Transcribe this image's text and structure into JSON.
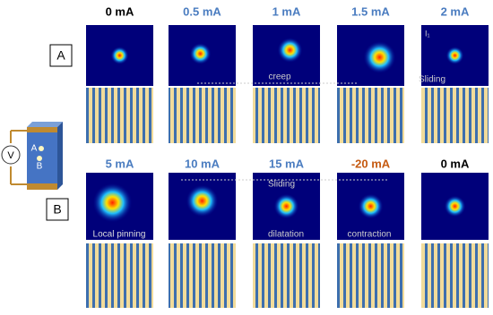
{
  "rows": [
    {
      "label": "A",
      "panels": [
        {
          "current": "0 mA",
          "color": "#000000"
        },
        {
          "current": "0.5 mA",
          "color": "#4a7cc0"
        },
        {
          "current": "1 mA",
          "color": "#4a7cc0"
        },
        {
          "current": "1.5 mA",
          "color": "#4a7cc0"
        },
        {
          "current": "2 mA",
          "color": "#4a7cc0"
        }
      ]
    },
    {
      "label": "B",
      "panels": [
        {
          "current": "5 mA",
          "color": "#4a7cc0"
        },
        {
          "current": "10 mA",
          "color": "#4a7cc0"
        },
        {
          "current": "15 mA",
          "color": "#4a7cc0"
        },
        {
          "current": "-20 mA",
          "color": "#c55a11"
        },
        {
          "current": "0 mA",
          "color": "#000000"
        }
      ]
    }
  ],
  "annotations": {
    "creep": "creep",
    "sliding_a": "Sliding",
    "intensity": "I₁",
    "local_pinning": "Local pinning",
    "sliding_b": "Sliding",
    "dilatation": "dilatation",
    "contraction": "contraction"
  },
  "device": {
    "voltage": "V",
    "spot_a": "A",
    "spot_b": "B"
  }
}
